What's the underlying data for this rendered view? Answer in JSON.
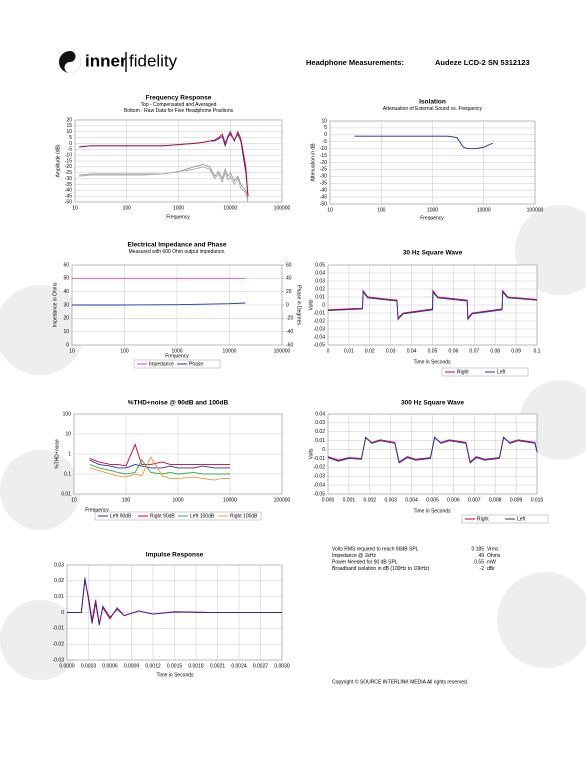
{
  "header": {
    "brand_left": "inner",
    "brand_right": "fidelity",
    "label": "Headphone Measurements:",
    "model": "Audeze LCD-2 SN 5312123"
  },
  "summary": {
    "rows": [
      [
        "Volts RMS required to reach 90dB SPL",
        0.185,
        "Vrms"
      ],
      [
        "Impedance @ 1kHz",
        49,
        "Ohms"
      ],
      [
        "Power Needed for 90 dB SPL",
        0.55,
        "mW"
      ],
      [
        "Broadband isolation in dB (100Hz to 10kHz)",
        -2,
        "dBr"
      ]
    ]
  },
  "copyright": "Copyright © SOURCE INTERLINK MEDIA All rights reserved.",
  "chart_data": [
    {
      "type": "line",
      "title": "Frequency Response",
      "subtitle": [
        "Top -  Compensated and Averaged",
        "Bottom - Raw Data for Five Headphone Positions"
      ],
      "xlabel": "Frequency",
      "ylabel": "Amplitude (dB)",
      "xlog": true,
      "grid": true,
      "xlim": [
        10,
        100000
      ],
      "xticks": [
        10,
        100,
        1000,
        10000,
        100000
      ],
      "ylim": [
        -50,
        20
      ],
      "yticks": [
        20,
        15,
        10,
        5,
        0,
        -5,
        -10,
        -15,
        -20,
        -25,
        -30,
        -35,
        -40,
        -45,
        -50
      ],
      "x": [
        12,
        20,
        50,
        100,
        200,
        500,
        1000,
        2000,
        3000,
        4000,
        5000,
        6000,
        7000,
        8000,
        9000,
        10000,
        12000,
        14000,
        16000,
        20000,
        22000
      ],
      "series": [
        {
          "color": "#999999",
          "values": [
            -27,
            -26,
            -26,
            -26,
            -26,
            -26,
            -24,
            -20,
            -18,
            -20,
            -28,
            -24,
            -30,
            -22,
            -28,
            -25,
            -32,
            -28,
            -35,
            -40,
            -48
          ]
        },
        {
          "color": "#aaaaaa",
          "values": [
            -28,
            -27,
            -27,
            -27,
            -27,
            -26,
            -24,
            -22,
            -20,
            -22,
            -30,
            -26,
            -33,
            -25,
            -31,
            -28,
            -35,
            -30,
            -38,
            -42,
            -50
          ]
        },
        {
          "color": "#2233aa",
          "values": [
            -3,
            -2,
            -2,
            -2,
            -2,
            -2,
            -1,
            0,
            1,
            2,
            2,
            4,
            6,
            -2,
            5,
            8,
            3,
            8,
            2,
            -25,
            -45
          ]
        },
        {
          "color": "#cc0033",
          "values": [
            -3,
            -2,
            -2,
            -2,
            -2,
            -2,
            -1,
            0,
            1,
            2,
            3,
            5,
            8,
            0,
            6,
            10,
            2,
            10,
            4,
            -20,
            -45
          ]
        }
      ]
    },
    {
      "type": "line",
      "title": "Isolation",
      "subtitle": [
        "Attenuation of External Sound vs. Frequency"
      ],
      "xlabel": "Frequency",
      "ylabel": "Attenuation in dB",
      "xlog": true,
      "grid": true,
      "xlim": [
        10,
        100000
      ],
      "xticks": [
        10,
        100,
        1000,
        10000,
        100000
      ],
      "ylim": [
        -50,
        10
      ],
      "yticks": [
        10,
        5,
        0,
        -5,
        -10,
        -15,
        -20,
        -25,
        -30,
        -35,
        -40,
        -45,
        -50
      ],
      "x": [
        30,
        50,
        100,
        200,
        500,
        1000,
        2000,
        3000,
        4000,
        5000,
        7000,
        10000,
        15000
      ],
      "series": [
        {
          "color": "#1a2a8a",
          "values": [
            -1,
            -1,
            -1,
            -1,
            -1,
            -1,
            -1,
            -2,
            -9,
            -10,
            -10,
            -9,
            -6
          ]
        }
      ]
    },
    {
      "type": "line",
      "title": "Electrical Impedance and Phase",
      "subtitle": [
        "Measured with 600 Ohm output impedance."
      ],
      "xlabel": "Frequency",
      "ylabel": "Impedance in Ohms",
      "y2label": "Phase in Degrees",
      "xlog": true,
      "grid": true,
      "xlim": [
        10,
        100000
      ],
      "xticks": [
        10,
        100,
        1000,
        10000,
        100000
      ],
      "ylim": [
        0,
        60
      ],
      "yticks": [
        0,
        10,
        20,
        30,
        40,
        50,
        60
      ],
      "y2lim": [
        -60,
        60
      ],
      "y2ticks": [
        -60,
        -40,
        -20,
        0,
        20,
        40,
        60
      ],
      "x": [
        10,
        20,
        100,
        1000,
        10000,
        20000
      ],
      "series": [
        {
          "name": "Impedance",
          "color": "#e040c0",
          "values": [
            50,
            50,
            50,
            50,
            50,
            50
          ]
        },
        {
          "name": "Phase",
          "color": "#2233aa",
          "axis": "y2",
          "values": [
            0,
            0,
            0,
            0.5,
            2,
            3
          ]
        }
      ]
    },
    {
      "type": "line",
      "title": "30 Hz Square Wave",
      "xlabel": "Time in Seconds",
      "ylabel": "Volts",
      "grid": true,
      "xlim": [
        0,
        0.1
      ],
      "xticks": [
        0,
        0.01,
        0.02,
        0.03,
        0.04,
        0.05,
        0.06,
        0.07,
        0.08,
        0.09,
        0.1
      ],
      "ylim": [
        -0.05,
        0.05
      ],
      "yticks": [
        0.05,
        0.04,
        0.03,
        0.02,
        0.01,
        0,
        -0.01,
        -0.02,
        -0.03,
        -0.04,
        -0.05
      ],
      "x": [
        0,
        0.0165,
        0.0168,
        0.019,
        0.033,
        0.0335,
        0.036,
        0.05,
        0.0502,
        0.0525,
        0.0666,
        0.0669,
        0.069,
        0.0833,
        0.0836,
        0.086,
        0.1
      ],
      "series": [
        {
          "name": "Right",
          "color": "#cc0033",
          "values": [
            -0.006,
            -0.004,
            0.018,
            0.01,
            0.006,
            -0.016,
            -0.01,
            -0.005,
            0.018,
            0.01,
            0.006,
            -0.016,
            -0.01,
            -0.005,
            0.018,
            0.01,
            0.007
          ]
        },
        {
          "name": "Left",
          "color": "#2233aa",
          "values": [
            -0.007,
            -0.005,
            0.016,
            0.009,
            0.005,
            -0.018,
            -0.011,
            -0.006,
            0.016,
            0.009,
            0.005,
            -0.018,
            -0.011,
            -0.006,
            0.016,
            0.009,
            0.006
          ]
        }
      ]
    },
    {
      "type": "line",
      "title": "%THD+noise @ 90dB and 100dB",
      "xlabel": "Frequency",
      "ylabel": "%THD+noise",
      "xlog": true,
      "ylog": true,
      "grid": true,
      "xlim": [
        10,
        100000
      ],
      "xticks": [
        10,
        100,
        1000,
        10000,
        100000
      ],
      "ylim": [
        0.01,
        100
      ],
      "yticks": [
        100,
        10,
        1,
        0.1,
        0.01
      ],
      "x": [
        20,
        30,
        50,
        70,
        100,
        150,
        200,
        300,
        500,
        700,
        1000,
        2000,
        3000,
        5000,
        7000,
        10000
      ],
      "series": [
        {
          "name": "Left 90dB",
          "color": "#2233aa",
          "values": [
            0.5,
            0.3,
            0.25,
            0.2,
            0.2,
            0.3,
            0.25,
            0.2,
            0.2,
            0.25,
            0.2,
            0.2,
            0.25,
            0.2,
            0.2,
            0.2
          ]
        },
        {
          "name": "Right 90dB",
          "color": "#cc0033",
          "values": [
            0.6,
            0.4,
            0.3,
            0.3,
            0.25,
            3,
            0.3,
            0.3,
            0.4,
            0.3,
            0.3,
            0.3,
            0.3,
            0.3,
            0.3,
            0.3
          ]
        },
        {
          "name": "Left 100dB",
          "color": "#33aa55",
          "values": [
            0.3,
            0.2,
            0.15,
            0.12,
            0.1,
            0.12,
            0.5,
            0.12,
            0.1,
            0.12,
            0.1,
            0.12,
            0.1,
            0.1,
            0.1,
            0.1
          ]
        },
        {
          "name": "Right 100dB",
          "color": "#ee9933",
          "values": [
            0.2,
            0.15,
            0.1,
            0.08,
            0.07,
            0.1,
            0.08,
            0.7,
            0.08,
            0.06,
            0.06,
            0.07,
            0.06,
            0.05,
            0.06,
            0.06
          ]
        }
      ]
    },
    {
      "type": "line",
      "title": "300 Hz Square Wave",
      "xlabel": "Time in Seconds",
      "ylabel": "Volts",
      "grid": true,
      "xlim": [
        0,
        0.01
      ],
      "xticks": [
        {
          "value": 0,
          "label": "0.000"
        },
        {
          "value": 0.001,
          "label": "0.001"
        },
        {
          "value": 0.002,
          "label": "0.002"
        },
        {
          "value": 0.003,
          "label": "0.003"
        },
        {
          "value": 0.004,
          "label": "0.004"
        },
        {
          "value": 0.005,
          "label": "0.005"
        },
        {
          "value": 0.006,
          "label": "0.006"
        },
        {
          "value": 0.007,
          "label": "0.007"
        },
        {
          "value": 0.008,
          "label": "0.008"
        },
        {
          "value": 0.009,
          "label": "0.009"
        },
        {
          "value": 0.01,
          "label": "0.010"
        }
      ],
      "ylim": [
        -0.05,
        0.04
      ],
      "yticks": [
        0.04,
        0.03,
        0.02,
        0.01,
        0,
        -0.01,
        -0.02,
        -0.03,
        -0.04,
        -0.05
      ],
      "x": [
        0,
        0.0005,
        0.001,
        0.0016,
        0.0018,
        0.0021,
        0.0025,
        0.0032,
        0.0034,
        0.0038,
        0.0042,
        0.0049,
        0.0051,
        0.0054,
        0.0058,
        0.0066,
        0.0068,
        0.0071,
        0.0075,
        0.0082,
        0.0084,
        0.0087,
        0.0091,
        0.0099,
        0.01
      ],
      "series": [
        {
          "name": "Right",
          "color": "#cc0033",
          "values": [
            -0.008,
            -0.012,
            -0.009,
            -0.01,
            0.013,
            0.008,
            0.011,
            0.008,
            -0.014,
            -0.008,
            -0.011,
            -0.009,
            0.013,
            0.008,
            0.011,
            0.008,
            -0.014,
            -0.008,
            -0.011,
            -0.009,
            0.013,
            0.008,
            0.011,
            0.008,
            -0.002
          ]
        },
        {
          "name": "Left",
          "color": "#2233aa",
          "values": [
            -0.009,
            -0.013,
            -0.01,
            -0.011,
            0.014,
            0.007,
            0.01,
            0.007,
            -0.015,
            -0.009,
            -0.012,
            -0.01,
            0.014,
            0.007,
            0.01,
            0.007,
            -0.015,
            -0.009,
            -0.012,
            -0.01,
            0.014,
            0.007,
            0.01,
            0.007,
            -0.003
          ]
        }
      ]
    },
    {
      "type": "line",
      "title": "Impulse Response",
      "xlabel": "Time in Seconds",
      "grid": true,
      "xlim": [
        0,
        0.003
      ],
      "xticks": [
        {
          "value": 0,
          "label": "0.0000"
        },
        {
          "value": 0.0003,
          "label": "0.0003"
        },
        {
          "value": 0.0006,
          "label": "0.0006"
        },
        {
          "value": 0.0009,
          "label": "0.0009"
        },
        {
          "value": 0.0012,
          "label": "0.0012"
        },
        {
          "value": 0.0015,
          "label": "0.0015"
        },
        {
          "value": 0.0018,
          "label": "0.0018"
        },
        {
          "value": 0.0021,
          "label": "0.0021"
        },
        {
          "value": 0.0024,
          "label": "0.0024"
        },
        {
          "value": 0.0027,
          "label": "0.0027"
        },
        {
          "value": 0.003,
          "label": "0.0030"
        }
      ],
      "ylim": [
        -0.03,
        0.03
      ],
      "yticks": [
        0.03,
        0.02,
        0.01,
        0,
        -0.01,
        -0.02,
        -0.03
      ],
      "x": [
        0,
        0.0002,
        0.00025,
        0.0003,
        0.00035,
        0.0004,
        0.00045,
        0.0005,
        0.0006,
        0.0007,
        0.0008,
        0.001,
        0.0012,
        0.0015,
        0.002,
        0.003
      ],
      "series": [
        {
          "color": "#cc0033",
          "values": [
            0,
            0,
            0.02,
            0.01,
            -0.005,
            0.008,
            -0.007,
            0.003,
            -0.004,
            0.003,
            -0.002,
            0.001,
            -0.001,
            0.0005,
            0,
            0
          ]
        },
        {
          "color": "#3322aa",
          "values": [
            0,
            0,
            0.022,
            0.008,
            -0.007,
            0.006,
            -0.008,
            0.004,
            -0.003,
            0.002,
            -0.002,
            0.001,
            -0.001,
            0.0003,
            0,
            0
          ]
        }
      ]
    }
  ]
}
